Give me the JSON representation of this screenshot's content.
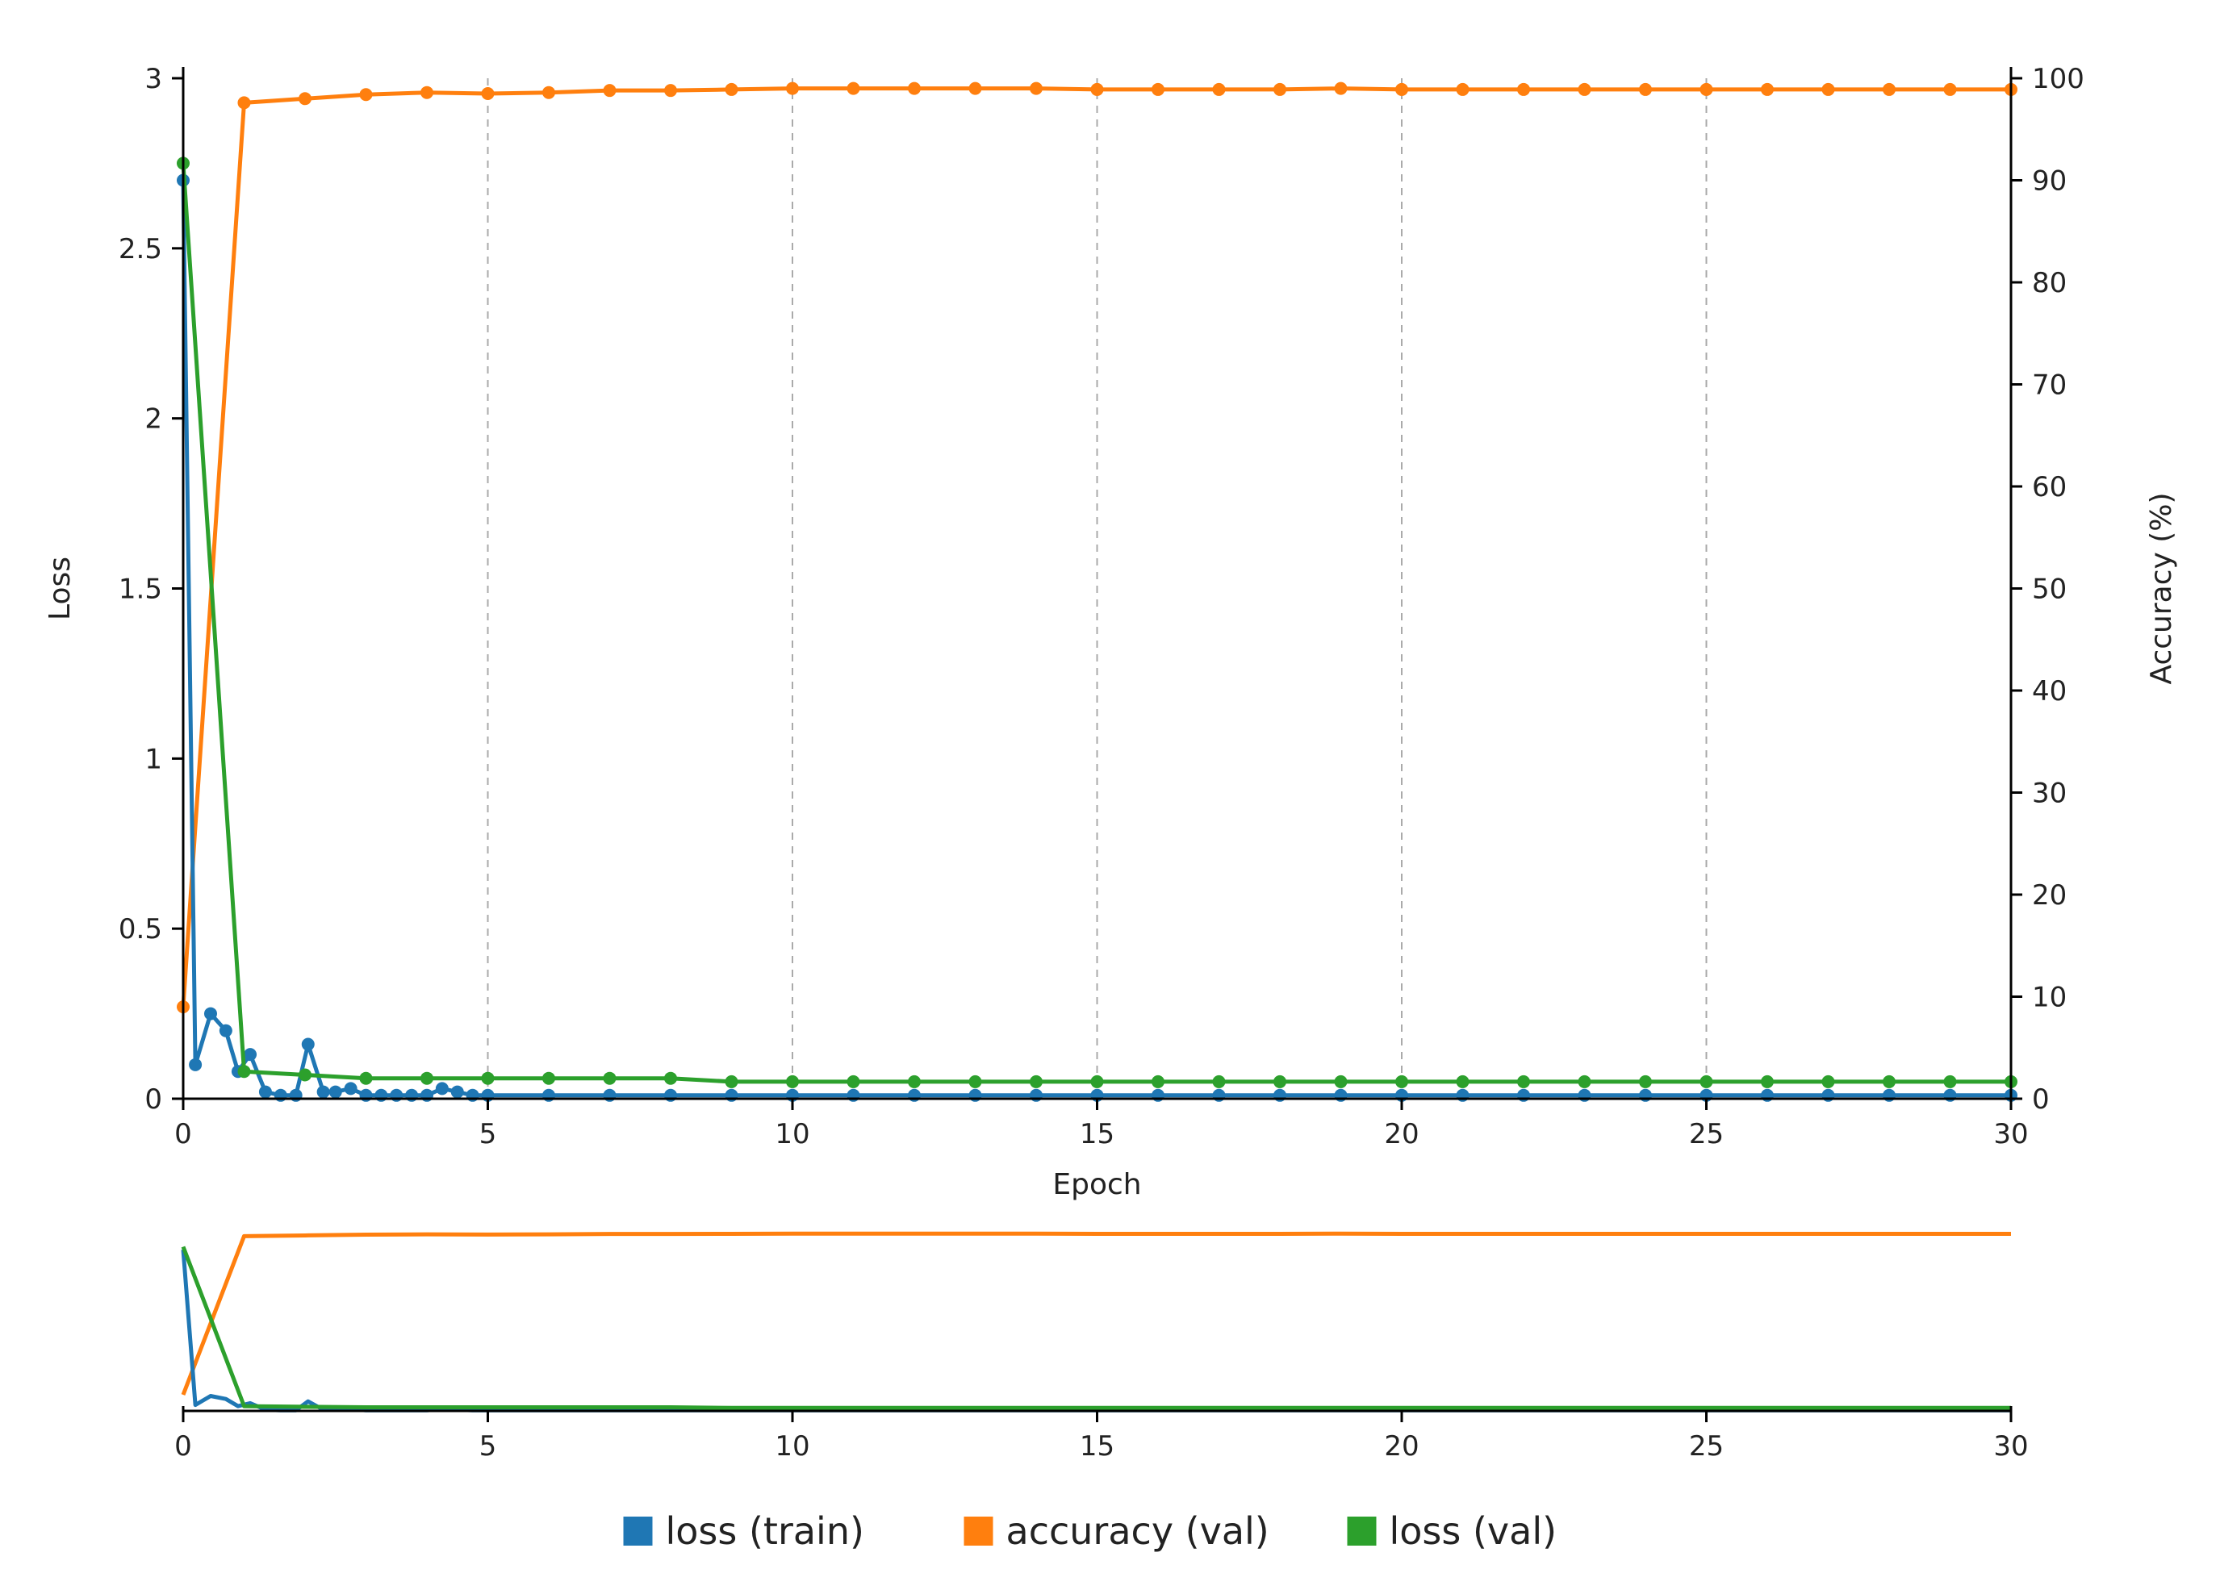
{
  "chart_data": {
    "type": "line",
    "title": "",
    "xlabel": "Epoch",
    "ylabel": "Loss",
    "y2label": "Accuracy (%)",
    "xlim": [
      0,
      30
    ],
    "ylim": [
      0,
      3
    ],
    "y2lim": [
      0,
      100
    ],
    "x_ticks": [
      0,
      5,
      10,
      15,
      20,
      25,
      30
    ],
    "y_ticks": [
      0,
      0.5,
      1,
      1.5,
      2,
      2.5,
      3
    ],
    "y_tick_labels": [
      "0",
      "0.5",
      "1",
      "1.5",
      "2",
      "2.5",
      "3"
    ],
    "y2_ticks": [
      0,
      10,
      20,
      30,
      40,
      50,
      60,
      70,
      80,
      90,
      100
    ],
    "grid": "vertical-dashed",
    "legend_position": "bottom",
    "colors": {
      "loss_train": "#1f77b4",
      "accuracy_val": "#ff7f0e",
      "loss_val": "#2ca02c"
    },
    "series": [
      {
        "name": "loss (train)",
        "axis": "left",
        "color": "#1f77b4",
        "x": [
          0,
          0.2,
          0.45,
          0.7,
          0.9,
          1.1,
          1.35,
          1.6,
          1.85,
          2.05,
          2.3,
          2.5,
          2.75,
          3.0,
          3.25,
          3.5,
          3.75,
          4.0,
          4.25,
          4.5,
          4.75,
          5,
          6,
          7,
          8,
          9,
          10,
          11,
          12,
          13,
          14,
          15,
          16,
          17,
          18,
          19,
          20,
          21,
          22,
          23,
          24,
          25,
          26,
          27,
          28,
          29,
          30
        ],
        "y": [
          2.7,
          0.1,
          0.25,
          0.2,
          0.08,
          0.13,
          0.02,
          0.01,
          0.01,
          0.16,
          0.02,
          0.02,
          0.03,
          0.01,
          0.01,
          0.01,
          0.01,
          0.01,
          0.03,
          0.02,
          0.01,
          0.01,
          0.01,
          0.01,
          0.01,
          0.01,
          0.01,
          0.01,
          0.01,
          0.01,
          0.01,
          0.01,
          0.01,
          0.01,
          0.01,
          0.01,
          0.01,
          0.01,
          0.01,
          0.01,
          0.01,
          0.01,
          0.01,
          0.01,
          0.01,
          0.01,
          0.01
        ]
      },
      {
        "name": "accuracy (val)",
        "axis": "right",
        "color": "#ff7f0e",
        "x": [
          0,
          1,
          2,
          3,
          4,
          5,
          6,
          7,
          8,
          9,
          10,
          11,
          12,
          13,
          14,
          15,
          16,
          17,
          18,
          19,
          20,
          21,
          22,
          23,
          24,
          25,
          26,
          27,
          28,
          29,
          30
        ],
        "y": [
          9,
          97.6,
          98.0,
          98.4,
          98.6,
          98.5,
          98.6,
          98.8,
          98.8,
          98.9,
          99.0,
          99.0,
          99.0,
          99.0,
          99.0,
          98.9,
          98.9,
          98.9,
          98.9,
          99.0,
          98.9,
          98.9,
          98.9,
          98.9,
          98.9,
          98.9,
          98.9,
          98.9,
          98.9,
          98.9,
          98.9
        ]
      },
      {
        "name": "loss (val)",
        "axis": "left",
        "color": "#2ca02c",
        "x": [
          0,
          1,
          2,
          3,
          4,
          5,
          6,
          7,
          8,
          9,
          10,
          11,
          12,
          13,
          14,
          15,
          16,
          17,
          18,
          19,
          20,
          21,
          22,
          23,
          24,
          25,
          26,
          27,
          28,
          29,
          30
        ],
        "y": [
          2.75,
          0.08,
          0.07,
          0.06,
          0.06,
          0.06,
          0.06,
          0.06,
          0.06,
          0.05,
          0.05,
          0.05,
          0.05,
          0.05,
          0.05,
          0.05,
          0.05,
          0.05,
          0.05,
          0.05,
          0.05,
          0.05,
          0.05,
          0.05,
          0.05,
          0.05,
          0.05,
          0.05,
          0.05,
          0.05,
          0.05
        ]
      }
    ],
    "overview": {
      "type": "line",
      "x_ticks": [
        0,
        5,
        10,
        15,
        20,
        25,
        30
      ],
      "xlim": [
        0,
        30
      ]
    }
  }
}
